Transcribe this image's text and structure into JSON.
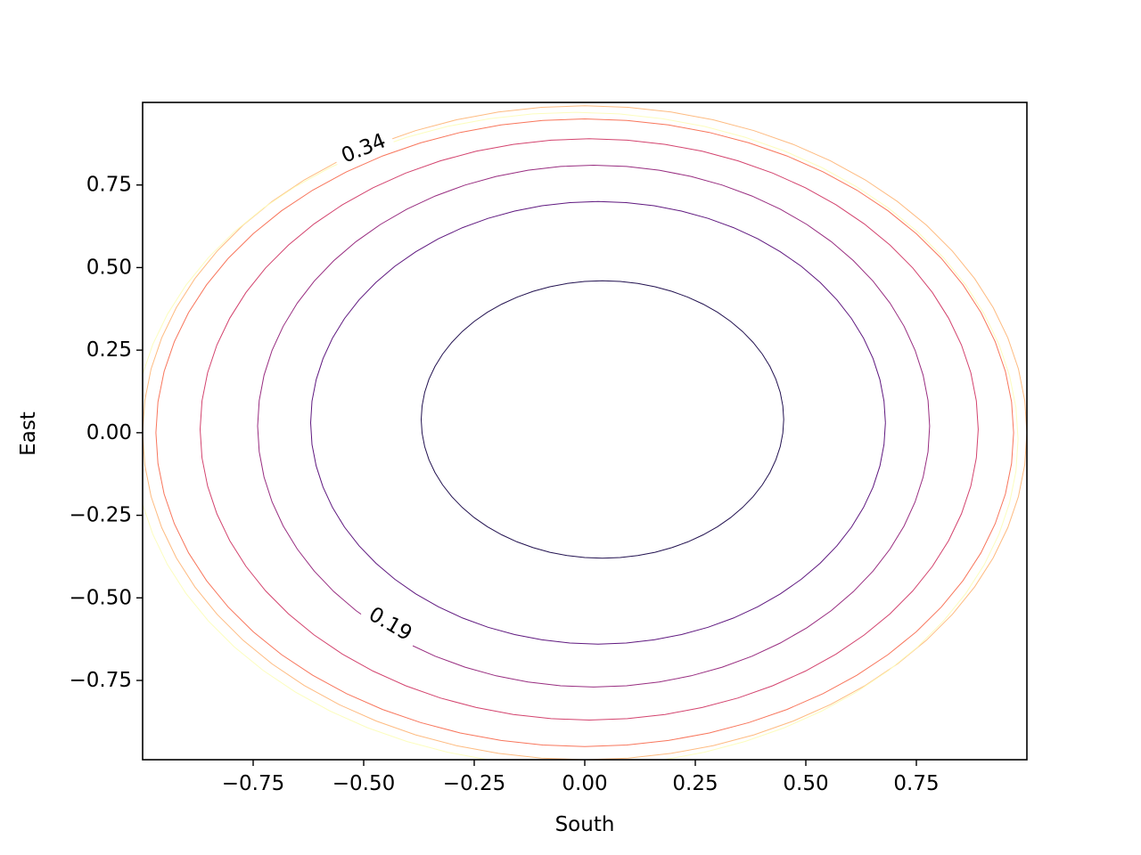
{
  "chart_data": {
    "type": "contour",
    "title": "",
    "xlabel": "South",
    "ylabel": "East",
    "xlim": [
      -1.0,
      1.0
    ],
    "ylim": [
      -0.99,
      1.0
    ],
    "xticks": [
      -0.75,
      -0.5,
      -0.25,
      0.0,
      0.25,
      0.5,
      0.75
    ],
    "xtick_labels": [
      "−0.75",
      "−0.50",
      "−0.25",
      "0.00",
      "0.25",
      "0.50",
      "0.75"
    ],
    "yticks": [
      -0.75,
      -0.5,
      -0.25,
      0.0,
      0.25,
      0.5,
      0.75
    ],
    "ytick_labels": [
      "−0.75",
      "−0.50",
      "−0.25",
      "0.00",
      "0.25",
      "0.50",
      "0.75"
    ],
    "grid": false,
    "colormap": "magma",
    "levels": [
      {
        "name": "level-1",
        "color": "#221150",
        "center": [
          0.04,
          0.04
        ],
        "rx": 0.41,
        "ry": 0.42
      },
      {
        "name": "level-2",
        "color": "#5f187f",
        "center": [
          0.03,
          0.03
        ],
        "rx": 0.65,
        "ry": 0.67
      },
      {
        "name": "level-3",
        "color": "#982d80",
        "center": [
          0.02,
          0.02
        ],
        "rx": 0.76,
        "ry": 0.79
      },
      {
        "name": "level-4",
        "color": "#d3436e",
        "center": [
          0.01,
          0.01
        ],
        "rx": 0.88,
        "ry": 0.88
      },
      {
        "name": "level-5",
        "color": "#f8765c",
        "center": [
          0.0,
          0.0
        ],
        "rx": 0.97,
        "ry": 0.95
      },
      {
        "name": "level-6",
        "color": "#febb81",
        "center": [
          0.0,
          0.0
        ],
        "rx": 1.0,
        "ry": 0.99
      },
      {
        "name": "level-7",
        "color": "#fcfdbf",
        "center": [
          -0.02,
          -0.02
        ],
        "rx": 1.0,
        "ry": 0.99
      }
    ],
    "contour_labels": [
      {
        "text": "0.34",
        "x": -0.5,
        "y": 0.86,
        "rotation": -22
      },
      {
        "text": "0.19",
        "x": -0.44,
        "y": -0.58,
        "rotation": 30
      }
    ]
  }
}
